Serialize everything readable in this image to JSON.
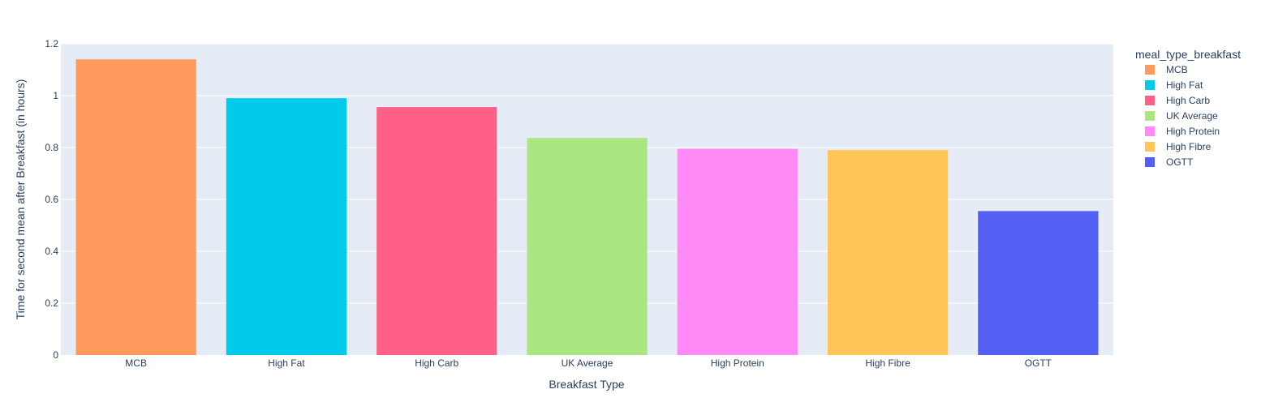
{
  "chart_data": {
    "type": "bar",
    "title": "",
    "xlabel": "Breakfast Type",
    "ylabel": "Time for second mean after Breakfast (in hours)",
    "categories": [
      "MCB",
      "High Fat",
      "High Carb",
      "UK Average",
      "High Protein",
      "High Fibre",
      "OGTT"
    ],
    "values": [
      1.14,
      0.99,
      0.956,
      0.837,
      0.795,
      0.79,
      0.555
    ],
    "colors": [
      "#FF9A5C",
      "#00CBEB",
      "#FF6088",
      "#AAE681",
      "#FF8AF5",
      "#FFC657",
      "#535EF3"
    ],
    "ylim": [
      0,
      1.2
    ],
    "yticks": [
      0,
      0.2,
      0.4,
      0.6,
      0.8,
      1,
      1.2
    ],
    "ytick_labels": [
      "0",
      "0.2",
      "0.4",
      "0.6",
      "0.8",
      "1",
      "1.2"
    ],
    "grid": true,
    "plot_background": "#E5ECF6",
    "legend": {
      "title": "meal_type_breakfast",
      "placement": "right",
      "items": [
        "MCB",
        "High Fat",
        "High Carb",
        "UK Average",
        "High Protein",
        "High Fibre",
        "OGTT"
      ]
    }
  }
}
